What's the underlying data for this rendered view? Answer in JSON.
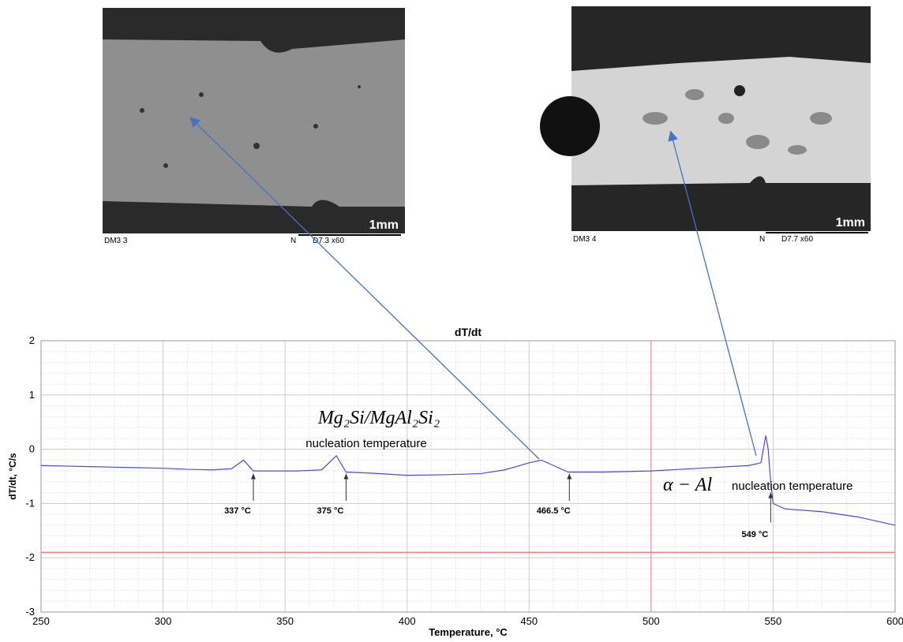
{
  "micrographs": [
    {
      "scale": "1mm",
      "caption_left": "DM3 3",
      "caption_mid": "N",
      "caption_right": "D7.3  x60"
    },
    {
      "scale": "1mm",
      "caption_left": "DM3 4",
      "caption_mid": "N",
      "caption_right": "D7.7  x60"
    }
  ],
  "chart_data": {
    "type": "line",
    "title": "dT/dt",
    "x_label": "Temperature, °C",
    "y_label": "dT/dt, °C/s",
    "x": [
      250,
      260,
      270,
      280,
      290,
      300,
      310,
      320,
      328,
      333,
      337,
      345,
      355,
      365,
      371,
      375,
      385,
      400,
      415,
      430,
      440,
      450,
      455,
      460,
      466,
      480,
      500,
      520,
      540,
      545,
      547,
      548,
      549,
      550,
      555,
      570,
      585,
      600
    ],
    "series": [
      {
        "name": "dT/dt",
        "color": "#4a4ae8",
        "values": [
          -0.3,
          -0.31,
          -0.32,
          -0.33,
          -0.34,
          -0.35,
          -0.37,
          -0.38,
          -0.36,
          -0.2,
          -0.4,
          -0.4,
          -0.4,
          -0.38,
          -0.12,
          -0.42,
          -0.44,
          -0.48,
          -0.47,
          -0.45,
          -0.38,
          -0.25,
          -0.2,
          -0.3,
          -0.42,
          -0.42,
          -0.4,
          -0.35,
          -0.3,
          -0.25,
          0.25,
          0,
          -0.6,
          -1.0,
          -1.1,
          -1.15,
          -1.25,
          -1.4
        ]
      }
    ],
    "xlim": [
      250,
      600
    ],
    "ylim": [
      -3,
      2
    ],
    "xticks": [
      250,
      300,
      350,
      400,
      450,
      500,
      550,
      600
    ],
    "yticks": [
      -3,
      -2,
      -1,
      0,
      1,
      2
    ],
    "grid": true,
    "reference_lines": [
      {
        "axis": "x",
        "value": 500,
        "color": "#f08080"
      },
      {
        "axis": "y",
        "value": -1.9,
        "color": "#f08080"
      }
    ],
    "annotations": [
      {
        "value": 337,
        "label": "337 °C"
      },
      {
        "value": 375,
        "label": "375 °C"
      },
      {
        "value": 466.5,
        "label": "466.5 °C"
      },
      {
        "value": 549,
        "label": "549 °C"
      }
    ],
    "phase_labels": [
      {
        "formula": "Mg₂Si/MgAl₂Si₂",
        "text": "nucleation temperature"
      },
      {
        "formula": "α − Al",
        "text": "nucleation temperature"
      }
    ]
  }
}
